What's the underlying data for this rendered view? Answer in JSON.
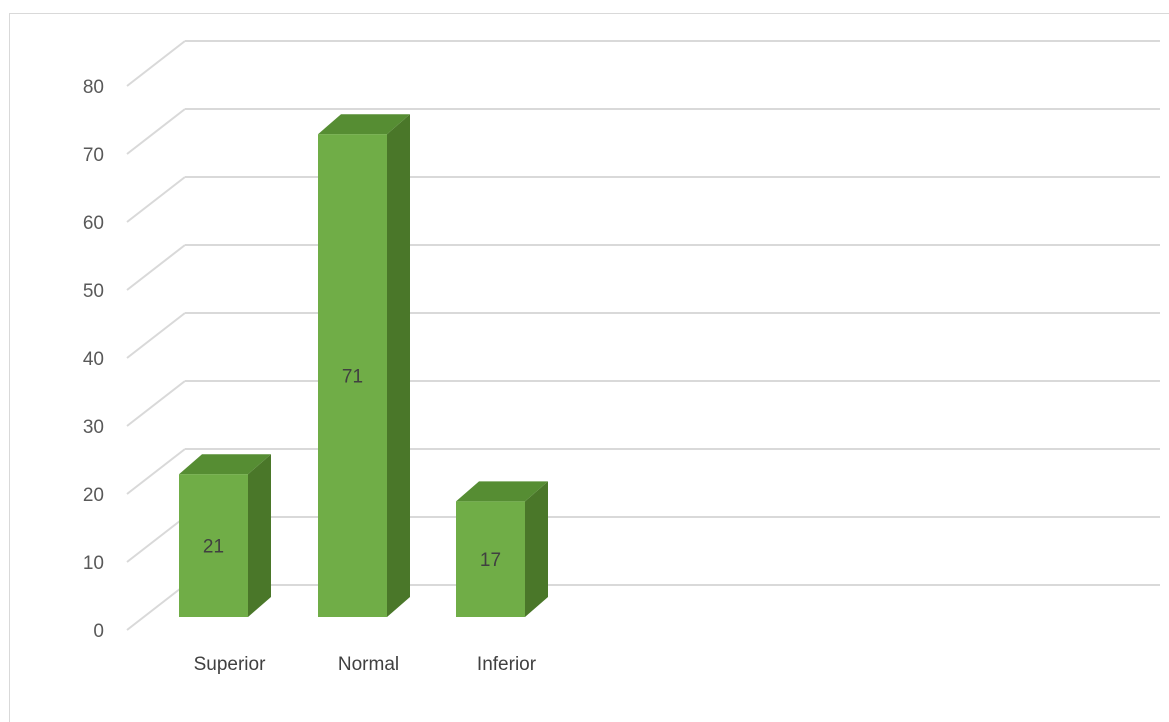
{
  "chart_data": {
    "type": "bar",
    "style": "3d-column",
    "categories": [
      "Superior",
      "Normal",
      "Inferior"
    ],
    "values": [
      21,
      71,
      17
    ],
    "data_labels": [
      "21",
      "71",
      "17"
    ],
    "y_ticks": [
      "0",
      "10",
      "20",
      "30",
      "40",
      "50",
      "60",
      "70",
      "80"
    ],
    "ylim": [
      0,
      80
    ],
    "grid": true,
    "legend": "none",
    "title": "",
    "xlabel": "",
    "ylabel": "",
    "colors": {
      "bar_front": "#70ad47",
      "bar_side": "#4a7729",
      "bar_top": "#568d33",
      "gridline": "#d9d9d9"
    }
  }
}
